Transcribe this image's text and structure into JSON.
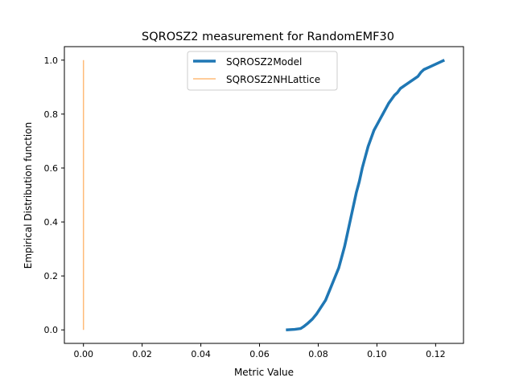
{
  "chart_data": {
    "type": "line",
    "title": "SQROSZ2 measurement for RandomEMF30",
    "xlabel": "Metric Value",
    "ylabel": "Empirical Distribution function",
    "xlim": [
      -0.0065,
      0.1295
    ],
    "ylim": [
      -0.05,
      1.05
    ],
    "x_ticks": [
      0.0,
      0.02,
      0.04,
      0.06,
      0.08,
      0.1,
      0.12
    ],
    "x_tick_labels": [
      "0.00",
      "0.02",
      "0.04",
      "0.06",
      "0.08",
      "0.10",
      "0.12"
    ],
    "y_ticks": [
      0.0,
      0.2,
      0.4,
      0.6,
      0.8,
      1.0
    ],
    "y_tick_labels": [
      "0.0",
      "0.2",
      "0.4",
      "0.6",
      "0.8",
      "1.0"
    ],
    "grid": false,
    "legend_position": "top-center",
    "series": [
      {
        "name": "SQROSZ2Model",
        "color": "#1f77b4",
        "x": [
          0.069,
          0.072,
          0.074,
          0.075,
          0.0765,
          0.078,
          0.0795,
          0.081,
          0.0825,
          0.084,
          0.0855,
          0.087,
          0.088,
          0.089,
          0.09,
          0.091,
          0.092,
          0.093,
          0.094,
          0.095,
          0.096,
          0.097,
          0.098,
          0.099,
          0.1,
          0.101,
          0.102,
          0.103,
          0.104,
          0.105,
          0.106,
          0.107,
          0.108,
          0.11,
          0.112,
          0.114,
          0.115,
          0.116,
          0.118,
          0.12,
          0.122,
          0.123
        ],
        "y": [
          0.0,
          0.002,
          0.005,
          0.012,
          0.025,
          0.04,
          0.06,
          0.085,
          0.11,
          0.15,
          0.19,
          0.23,
          0.27,
          0.31,
          0.36,
          0.41,
          0.46,
          0.51,
          0.55,
          0.6,
          0.64,
          0.68,
          0.71,
          0.74,
          0.76,
          0.78,
          0.8,
          0.82,
          0.84,
          0.855,
          0.87,
          0.88,
          0.895,
          0.91,
          0.925,
          0.94,
          0.955,
          0.965,
          0.975,
          0.985,
          0.995,
          1.0
        ]
      },
      {
        "name": "SQROSZ2NHLattice",
        "color": "#ffbb78",
        "x": [
          0.0,
          0.0
        ],
        "y": [
          0.0,
          1.0
        ]
      }
    ]
  }
}
